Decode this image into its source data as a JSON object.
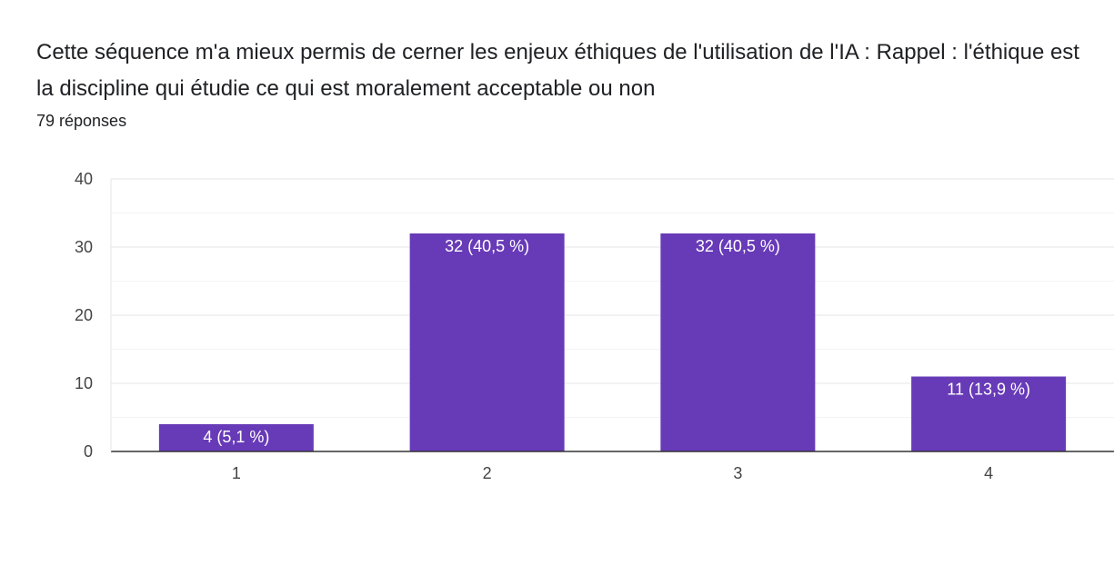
{
  "question": {
    "title": "Cette séquence m'a mieux permis de cerner les enjeux éthiques de l'utilisation de l'IA : Rappel : l'éthique est la discipline qui étudie ce qui est moralement acceptable ou non",
    "responses": "79 réponses"
  },
  "colors": {
    "bar": "#673ab7",
    "grid_major": "#e6e6e6",
    "grid_minor": "#f3f3f3",
    "axis": "#333333"
  },
  "chart_data": {
    "type": "bar",
    "categories": [
      "1",
      "2",
      "3",
      "4"
    ],
    "values": [
      4,
      32,
      32,
      11
    ],
    "data_labels": [
      "4 (5,1 %)",
      "32 (40,5 %)",
      "32 (40,5 %)",
      "11 (13,9 %)"
    ],
    "yticks": [
      0,
      10,
      20,
      30,
      40
    ],
    "ylim": [
      0,
      40
    ],
    "grid": true,
    "legend": "none"
  }
}
